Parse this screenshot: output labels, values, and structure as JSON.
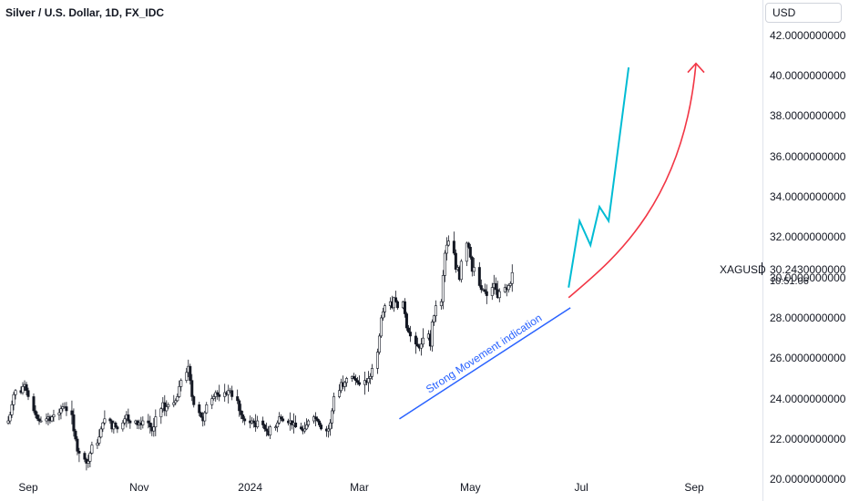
{
  "header": {
    "title": "Silver / U.S. Dollar, 1D, FX_IDC",
    "currency": "USD"
  },
  "price_box": {
    "symbol": "XAGUSD",
    "last_price": "30.2430000000",
    "countdown": "10:51:06"
  },
  "annotation": {
    "text": "Strong Movement indication",
    "color": "#2962ff"
  },
  "colors": {
    "candle": "#131722",
    "trendline": "#2962ff",
    "projection_zigzag": "#00bcd4",
    "projection_arc": "#f23645"
  },
  "chart_data": {
    "type": "candlestick",
    "title": "Silver / U.S. Dollar, 1D, FX_IDC",
    "y_axis": {
      "range": [
        20,
        42.5
      ],
      "ticks": [
        "20.0000000000",
        "22.0000000000",
        "24.0000000000",
        "26.0000000000",
        "28.0000000000",
        "30.0000000000",
        "32.0000000000",
        "34.0000000000",
        "36.0000000000",
        "38.0000000000",
        "40.0000000000",
        "42.0000000000"
      ],
      "tick_values": [
        20,
        22,
        24,
        26,
        28,
        30,
        32,
        34,
        36,
        38,
        40,
        42
      ]
    },
    "x_axis": {
      "labels": [
        "Sep",
        "Nov",
        "2024",
        "Mar",
        "May",
        "Jul",
        "Sep"
      ],
      "label_dates": [
        "2023-09-01",
        "2023-11-01",
        "2024-01-01",
        "2024-03-01",
        "2024-05-01",
        "2024-07-01",
        "2024-09-01"
      ],
      "range": [
        "2023-08-21",
        "2024-10-01"
      ]
    },
    "daily_closes": {
      "start_date": "2023-08-21",
      "trading_days_only": true,
      "values": [
        22.9,
        23.2,
        23.7,
        24.2,
        24.4,
        24.3,
        24.6,
        24.7,
        24.4,
        24.1,
        23.4,
        23.2,
        23.0,
        22.9,
        22.9,
        23.0,
        23.1,
        22.9,
        23.1,
        23.2,
        23.3,
        23.5,
        23.6,
        23.6,
        23.4,
        23.2,
        22.4,
        22.0,
        21.4,
        21.3,
        21.0,
        20.8,
        20.9,
        21.3,
        21.7,
        21.8,
        22.1,
        22.5,
        22.8,
        23.0,
        22.9,
        22.5,
        22.8,
        22.6,
        22.5,
        22.8,
        23.0,
        23.2,
        22.9,
        22.8,
        22.9,
        22.7,
        22.8,
        22.7,
        22.9,
        22.8,
        22.6,
        22.4,
        22.6,
        23.1,
        23.5,
        23.8,
        23.4,
        23.6,
        23.7,
        23.8,
        23.9,
        24.1,
        24.6,
        24.9,
        25.3,
        25.6,
        24.9,
        24.1,
        23.7,
        23.3,
        23.1,
        22.9,
        23.3,
        23.7,
        24.0,
        24.1,
        24.3,
        24.2,
        24.1,
        24.3,
        24.2,
        24.4,
        24.4,
        24.1,
        23.9,
        23.4,
        23.2,
        23.0,
        22.9,
        22.8,
        22.9,
        22.8,
        22.6,
        22.9,
        22.7,
        22.5,
        22.4,
        22.2,
        22.6,
        22.6,
        22.8,
        23.1,
        23.0,
        22.9,
        22.8,
        22.9,
        22.7,
        22.8,
        22.6,
        22.5,
        22.4,
        22.5,
        22.7,
        22.9,
        23.1,
        23.0,
        22.9,
        22.7,
        22.5,
        22.4,
        22.5,
        22.8,
        23.4,
        24.1,
        24.4,
        24.8,
        24.6,
        24.8,
        25.0,
        25.1,
        25.0,
        24.9,
        24.8,
        24.7,
        24.9,
        24.8,
        25.0,
        25.1,
        25.5,
        26.3,
        27.1,
        28.0,
        28.3,
        28.6,
        28.8,
        28.5,
        29.0,
        28.8,
        28.5,
        28.8,
        28.2,
        27.5,
        27.3,
        27.1,
        26.7,
        26.6,
        26.5,
        26.7,
        27.0,
        27.2,
        26.6,
        27.8,
        28.1,
        28.6,
        28.8,
        30.1,
        31.2,
        31.6,
        31.8,
        31.2,
        30.4,
        30.5,
        29.9,
        30.8,
        31.7,
        31.5,
        31.0,
        30.3,
        30.5,
        29.6,
        29.4,
        29.4,
        29.3,
        29.1,
        29.5,
        29.7,
        29.4,
        29.0,
        29.3,
        29.5,
        29.4,
        29.6,
        29.7,
        30.24
      ]
    },
    "projection_zigzag": {
      "points": [
        [
          "2024-06-24",
          29.5
        ],
        [
          "2024-06-30",
          32.8
        ],
        [
          "2024-07-06",
          31.6
        ],
        [
          "2024-07-11",
          33.5
        ],
        [
          "2024-07-16",
          32.8
        ],
        [
          "2024-07-27",
          40.4
        ]
      ]
    },
    "projection_arc": {
      "points": [
        [
          "2024-06-24",
          29.0
        ],
        [
          "2024-07-16",
          30.7
        ],
        [
          "2024-08-09",
          33.5
        ],
        [
          "2024-08-26",
          37.0
        ],
        [
          "2024-09-02",
          40.6
        ]
      ]
    },
    "trendline": {
      "points": [
        [
          "2024-03-23",
          23.0
        ],
        [
          "2024-06-25",
          28.5
        ]
      ]
    }
  }
}
